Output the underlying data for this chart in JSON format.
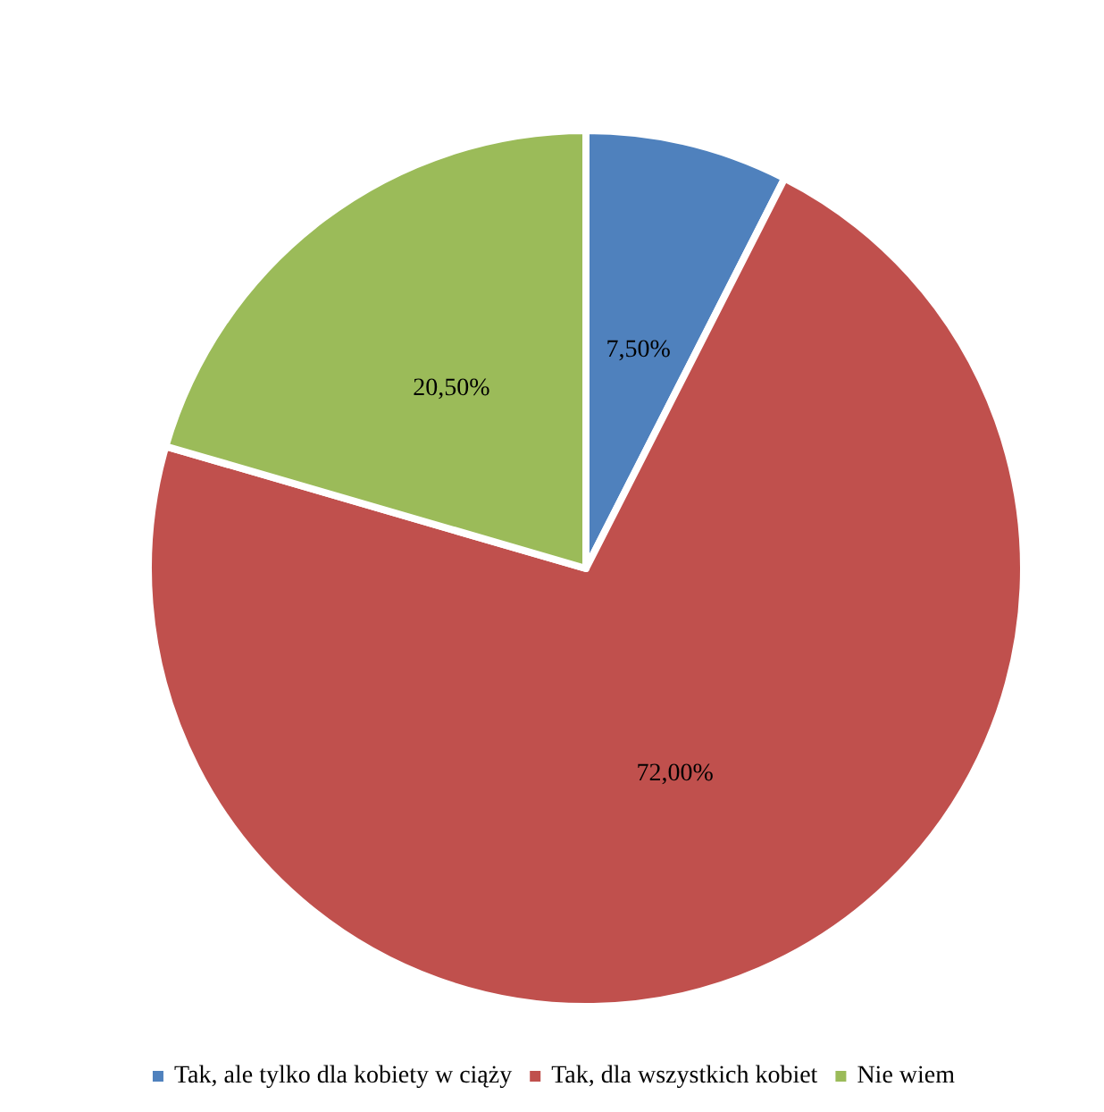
{
  "chart_data": {
    "type": "pie",
    "categories": [
      "Tak, ale tylko dla kobiety w ciąży",
      "Tak, dla wszystkich kobiet",
      "Nie wiem"
    ],
    "values": [
      7.5,
      72,
      20.5
    ],
    "colors": [
      "#4f81bd",
      "#c0504d",
      "#9bbb59"
    ],
    "value_labels": [
      "7,50%",
      "72,00%",
      "20,50%"
    ],
    "legend": "bottom"
  }
}
